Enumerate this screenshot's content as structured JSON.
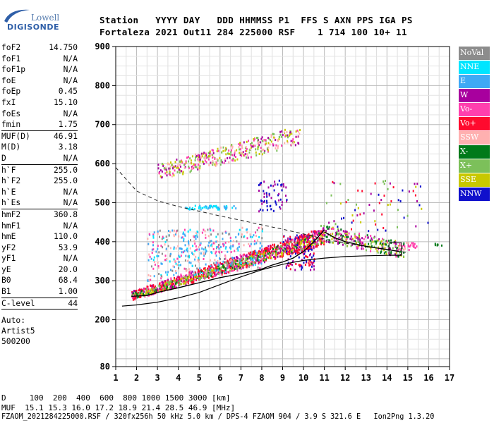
{
  "logo": {
    "line1": "Lowell",
    "line2": "DIGISONDE"
  },
  "header": {
    "labels": "Station   YYYY DAY   DDD HHMMSS P1  FFS S AXN PPS IGA PS",
    "values": "Fortaleza 2021 Out11 284 225000 RSF    1 714 100 10+ 11"
  },
  "params": [
    {
      "group": [
        [
          "foF2",
          "14.750"
        ],
        [
          "foF1",
          "N/A"
        ],
        [
          "foF1p",
          "N/A"
        ],
        [
          "foE",
          "N/A"
        ],
        [
          "foEp",
          "0.45"
        ],
        [
          "fxI",
          "15.10"
        ],
        [
          "foEs",
          "N/A"
        ],
        [
          "fmin",
          "1.75"
        ]
      ]
    },
    {
      "group": [
        [
          "MUF(D)",
          "46.91"
        ],
        [
          "M(D)",
          "3.18"
        ],
        [
          "D",
          "N/A"
        ]
      ]
    },
    {
      "group": [
        [
          "h`F",
          "255.0"
        ],
        [
          "h`F2",
          "255.0"
        ],
        [
          "h`E",
          "N/A"
        ],
        [
          "h`Es",
          "N/A"
        ]
      ]
    },
    {
      "group": [
        [
          "hmF2",
          "360.8"
        ],
        [
          "hmF1",
          "N/A"
        ],
        [
          "hmE",
          "110.0"
        ],
        [
          "yF2",
          "53.9"
        ],
        [
          "yF1",
          "N/A"
        ],
        [
          "yE",
          "20.0"
        ],
        [
          "B0",
          "68.4"
        ],
        [
          "B1",
          "1.00"
        ]
      ]
    },
    {
      "group": [
        [
          "C-level",
          "44"
        ]
      ]
    }
  ],
  "auto": [
    "Auto:",
    "Artist5",
    "500200"
  ],
  "legend": [
    {
      "label": "NoVal",
      "color": "#8c8c8c"
    },
    {
      "label": "NNE",
      "color": "#00e5ff"
    },
    {
      "label": "E",
      "color": "#3fa9f5"
    },
    {
      "label": "W",
      "color": "#a8009e"
    },
    {
      "label": "Vo-",
      "color": "#ff3fae"
    },
    {
      "label": "Vo+",
      "color": "#ff0a2e"
    },
    {
      "label": "SSW",
      "color": "#ffb0b0"
    },
    {
      "label": "X-",
      "color": "#007a1a"
    },
    {
      "label": "X+",
      "color": "#7cc05a"
    },
    {
      "label": "SSE",
      "color": "#c8c800"
    },
    {
      "label": "NNW",
      "color": "#1010cc"
    }
  ],
  "chart_data": {
    "type": "scatter",
    "x_axis": {
      "range": [
        1,
        17
      ],
      "ticks": [
        1,
        2,
        3,
        4,
        5,
        6,
        7,
        8,
        9,
        10,
        11,
        12,
        13,
        14,
        15,
        16,
        17
      ]
    },
    "y_axis": {
      "range": [
        80,
        900
      ],
      "ticks": [
        80,
        200,
        300,
        400,
        500,
        600,
        700,
        800,
        900
      ]
    },
    "grid": true,
    "trace_virtual_height": [
      [
        1.75,
        260
      ],
      [
        2.5,
        262
      ],
      [
        3,
        270
      ],
      [
        4,
        282
      ],
      [
        5,
        295
      ],
      [
        6,
        308
      ],
      [
        7,
        318
      ],
      [
        8,
        330
      ],
      [
        8.5,
        340
      ],
      [
        9,
        348
      ],
      [
        9.5,
        358
      ],
      [
        10,
        375
      ],
      [
        10.5,
        400
      ],
      [
        11,
        430
      ]
    ],
    "model_true_height": [
      [
        1.3,
        235
      ],
      [
        2,
        238
      ],
      [
        3,
        245
      ],
      [
        4,
        256
      ],
      [
        5,
        270
      ],
      [
        6,
        290
      ],
      [
        7,
        310
      ],
      [
        8,
        328
      ],
      [
        9,
        342
      ],
      [
        10,
        352
      ],
      [
        11,
        358
      ],
      [
        12,
        362
      ],
      [
        13,
        364
      ],
      [
        14,
        365
      ],
      [
        14.7,
        366
      ]
    ],
    "x_trace": [
      [
        11,
        425
      ],
      [
        11.5,
        410
      ],
      [
        12,
        400
      ],
      [
        12.5,
        394
      ],
      [
        13,
        388
      ],
      [
        13.5,
        384
      ],
      [
        14,
        380
      ],
      [
        14.6,
        375
      ]
    ],
    "muf_curve": [
      [
        1,
        590
      ],
      [
        1.5,
        560
      ],
      [
        2,
        530
      ],
      [
        3,
        505
      ],
      [
        4,
        490
      ],
      [
        5,
        478
      ],
      [
        6,
        466
      ],
      [
        7,
        455
      ],
      [
        8,
        443
      ],
      [
        9,
        432
      ],
      [
        10,
        420
      ],
      [
        11,
        407
      ],
      [
        12,
        396
      ],
      [
        13,
        388
      ],
      [
        14,
        380
      ],
      [
        15,
        372
      ]
    ]
  },
  "footer": {
    "d_line": "D     100  200  400  600  800 1000 1500 3000 [km]",
    "muf_line": "MUF  15.1 15.3 16.0 17.2 18.9 21.4 28.5 46.9 [MHz]",
    "file_line": "FZAOM_2021284225000.RSF / 320fx256h 50 kHz 5.0 km / DPS-4 FZAOM 904 / 3.9 S 321.6 E   Ion2Png 1.3.20"
  }
}
